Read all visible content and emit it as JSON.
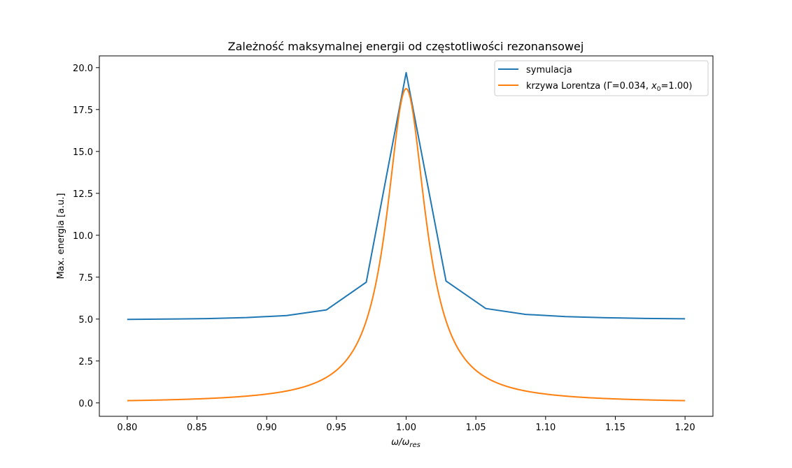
{
  "chart_data": {
    "type": "line",
    "title": "Zależność maksymalnej energii od częstotliwości rezonansowej",
    "xlabel": {
      "base": "ω/ω",
      "sub": "res"
    },
    "ylabel": "Max. energia [a.u.]",
    "xlim": [
      0.78,
      1.22
    ],
    "ylim": [
      -0.8,
      20.7
    ],
    "xticks": [
      0.8,
      0.85,
      0.9,
      0.95,
      1.0,
      1.05,
      1.1,
      1.15,
      1.2
    ],
    "xtick_labels": [
      "0.80",
      "0.85",
      "0.90",
      "0.95",
      "1.00",
      "1.05",
      "1.10",
      "1.15",
      "1.20"
    ],
    "yticks": [
      0.0,
      2.5,
      5.0,
      7.5,
      10.0,
      12.5,
      15.0,
      17.5,
      20.0
    ],
    "ytick_labels": [
      "0.0",
      "2.5",
      "5.0",
      "7.5",
      "10.0",
      "12.5",
      "15.0",
      "17.5",
      "20.0"
    ],
    "grid": false,
    "legend_position": "top-right",
    "series": [
      {
        "name": "symulacja",
        "color": "#1f77b4",
        "x": [
          0.8,
          0.8286,
          0.8571,
          0.8857,
          0.9143,
          0.9429,
          0.9714,
          1.0,
          1.0286,
          1.0571,
          1.0857,
          1.1143,
          1.1429,
          1.1714,
          1.2
        ],
        "y": [
          4.98,
          5.0,
          5.03,
          5.09,
          5.21,
          5.55,
          7.2,
          19.7,
          7.27,
          5.63,
          5.28,
          5.15,
          5.08,
          5.04,
          5.02
        ]
      },
      {
        "name": "krzywa Lorentza (Γ=0.034, x0=1.00)",
        "legend_parts": {
          "prefix": "krzywa Lorentza (Γ=0.034, ",
          "var": "x",
          "sub": "0",
          "suffix": "=1.00)"
        },
        "color": "#ff7f0e",
        "model": {
          "kind": "lorentzian",
          "gamma": 0.034,
          "x0": 1.0,
          "peak": 18.75
        },
        "x_range": [
          0.8,
          1.2
        ],
        "y_endpoints": [
          0.14,
          0.14
        ]
      }
    ]
  }
}
